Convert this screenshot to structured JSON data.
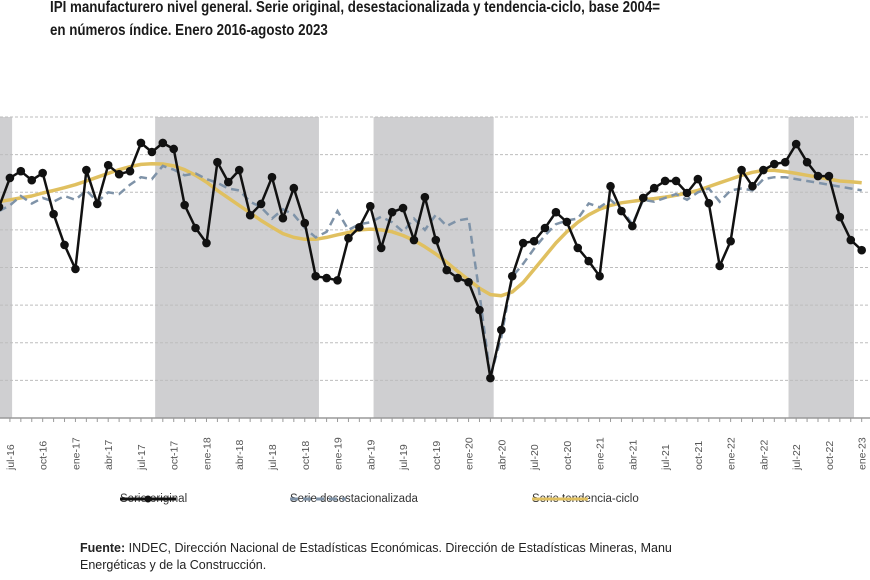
{
  "chart_data": {
    "type": "line",
    "title_line1": "IPI manufacturero nivel general. Serie original, desestacionalizada y tendencia-ciclo, base 2004=",
    "title_line2": "en números índice. Enero 2016-agosto 2023",
    "xlabel": "",
    "ylabel": "",
    "ylim": [
      100,
      180
    ],
    "grid": true,
    "legend_position": "bottom",
    "x_start": "jun-16",
    "tick_labels": [
      "jul-16",
      "oct-16",
      "ene-17",
      "abr-17",
      "jul-17",
      "oct-17",
      "ene-18",
      "abr-18",
      "jul-18",
      "oct-18",
      "ene-19",
      "abr-19",
      "jul-19",
      "oct-19",
      "ene-20",
      "abr-20",
      "jul-20",
      "oct-20",
      "ene-21",
      "abr-21",
      "jul-21",
      "oct-21",
      "ene-22",
      "abr-22",
      "jul-22",
      "oct-22",
      "ene-23"
    ],
    "shaded_periods": [
      {
        "from_index": -1,
        "to_index": 1.2
      },
      {
        "from_index": 14.3,
        "to_index": 29.3
      },
      {
        "from_index": 34.3,
        "to_index": 45.3
      },
      {
        "from_index": 72.3,
        "to_index": 78.3
      }
    ],
    "series": [
      {
        "name": "Serie original",
        "color": "#111111",
        "values": [
          156.1,
          163.8,
          165.6,
          163.2,
          165.1,
          154.2,
          146.0,
          139.6,
          165.9,
          156.9,
          167.2,
          164.8,
          165.6,
          173.1,
          170.7,
          173.1,
          171.5,
          156.6,
          150.5,
          146.5,
          168.0,
          162.7,
          165.9,
          153.9,
          156.9,
          164.0,
          153.1,
          161.1,
          151.8,
          137.7,
          137.2,
          136.6,
          147.8,
          150.7,
          156.3,
          145.2,
          154.7,
          155.8,
          147.3,
          158.7,
          147.3,
          139.3,
          137.2,
          136.1,
          128.7,
          110.6,
          123.4,
          137.7,
          146.5,
          147.0,
          150.5,
          154.7,
          152.1,
          145.2,
          141.7,
          137.7,
          161.6,
          155.0,
          151.0,
          158.5,
          161.1,
          163.0,
          163.0,
          159.8,
          163.5,
          157.1,
          140.4,
          147.0,
          165.9,
          161.6,
          165.9,
          167.5,
          168.0,
          172.8,
          168.0,
          164.3,
          164.3,
          153.4,
          147.3,
          144.6
        ]
      },
      {
        "name": "Serie desestacionalizada",
        "color": "#7f93a8",
        "values": [
          155.0,
          156.5,
          159.0,
          157.0,
          158.5,
          157.5,
          159.0,
          158.0,
          160.5,
          157.5,
          160.0,
          159.5,
          162.0,
          164.0,
          163.5,
          167.0,
          166.0,
          164.5,
          165.0,
          163.5,
          162.5,
          161.0,
          160.5,
          157.5,
          156.0,
          153.0,
          155.5,
          154.0,
          150.5,
          148.0,
          149.5,
          155.0,
          150.0,
          151.5,
          152.0,
          153.5,
          152.0,
          149.5,
          153.0,
          150.0,
          154.0,
          151.0,
          152.5,
          153.0,
          133.0,
          111.0,
          121.5,
          137.5,
          141.0,
          145.0,
          148.5,
          151.5,
          152.5,
          153.0,
          157.0,
          156.0,
          158.0,
          155.5,
          151.5,
          158.0,
          157.5,
          158.5,
          159.5,
          158.0,
          160.0,
          161.0,
          157.5,
          160.5,
          161.0,
          160.5,
          163.5,
          164.0,
          164.0,
          163.5,
          163.0,
          162.5,
          162.0,
          161.5,
          161.0,
          160.5
        ]
      },
      {
        "name": "Serie tendencia-ciclo",
        "color": "#e0c060",
        "values": [
          157.5,
          158.0,
          158.5,
          159.0,
          159.8,
          160.5,
          161.2,
          162.0,
          163.0,
          164.0,
          165.0,
          166.0,
          166.8,
          167.4,
          167.6,
          167.5,
          167.0,
          166.0,
          164.5,
          162.7,
          160.5,
          158.5,
          156.5,
          154.5,
          152.5,
          150.7,
          149.0,
          148.0,
          147.5,
          147.5,
          148.0,
          148.7,
          149.3,
          150.0,
          150.2,
          150.0,
          149.5,
          148.5,
          147.2,
          145.5,
          143.6,
          141.4,
          139.0,
          136.7,
          134.5,
          132.8,
          132.5,
          133.5,
          136.0,
          139.5,
          143.0,
          146.5,
          149.5,
          152.0,
          154.0,
          155.5,
          156.5,
          157.2,
          157.6,
          158.0,
          158.3,
          158.7,
          159.2,
          159.8,
          160.5,
          161.5,
          162.5,
          163.5,
          164.5,
          165.3,
          165.8,
          165.8,
          165.5,
          165.0,
          164.5,
          164.0,
          163.5,
          163.0,
          162.8,
          162.5
        ]
      }
    ]
  },
  "legend": {
    "items": [
      {
        "label": "Serie original"
      },
      {
        "label": "Serie desestacionalizada"
      },
      {
        "label": "Serie tendencia-ciclo"
      }
    ]
  },
  "source": {
    "bold": "Fuente:",
    "text": " INDEC, Dirección Nacional de Estadísticas Económicas. Dirección de Estadísticas Mineras, Manu",
    "line2": "Energéticas y de la Construcción."
  },
  "colors": {
    "shade": "#cfcfd1",
    "grid": "#bdbdbd",
    "axis": "#9a9a9a"
  }
}
